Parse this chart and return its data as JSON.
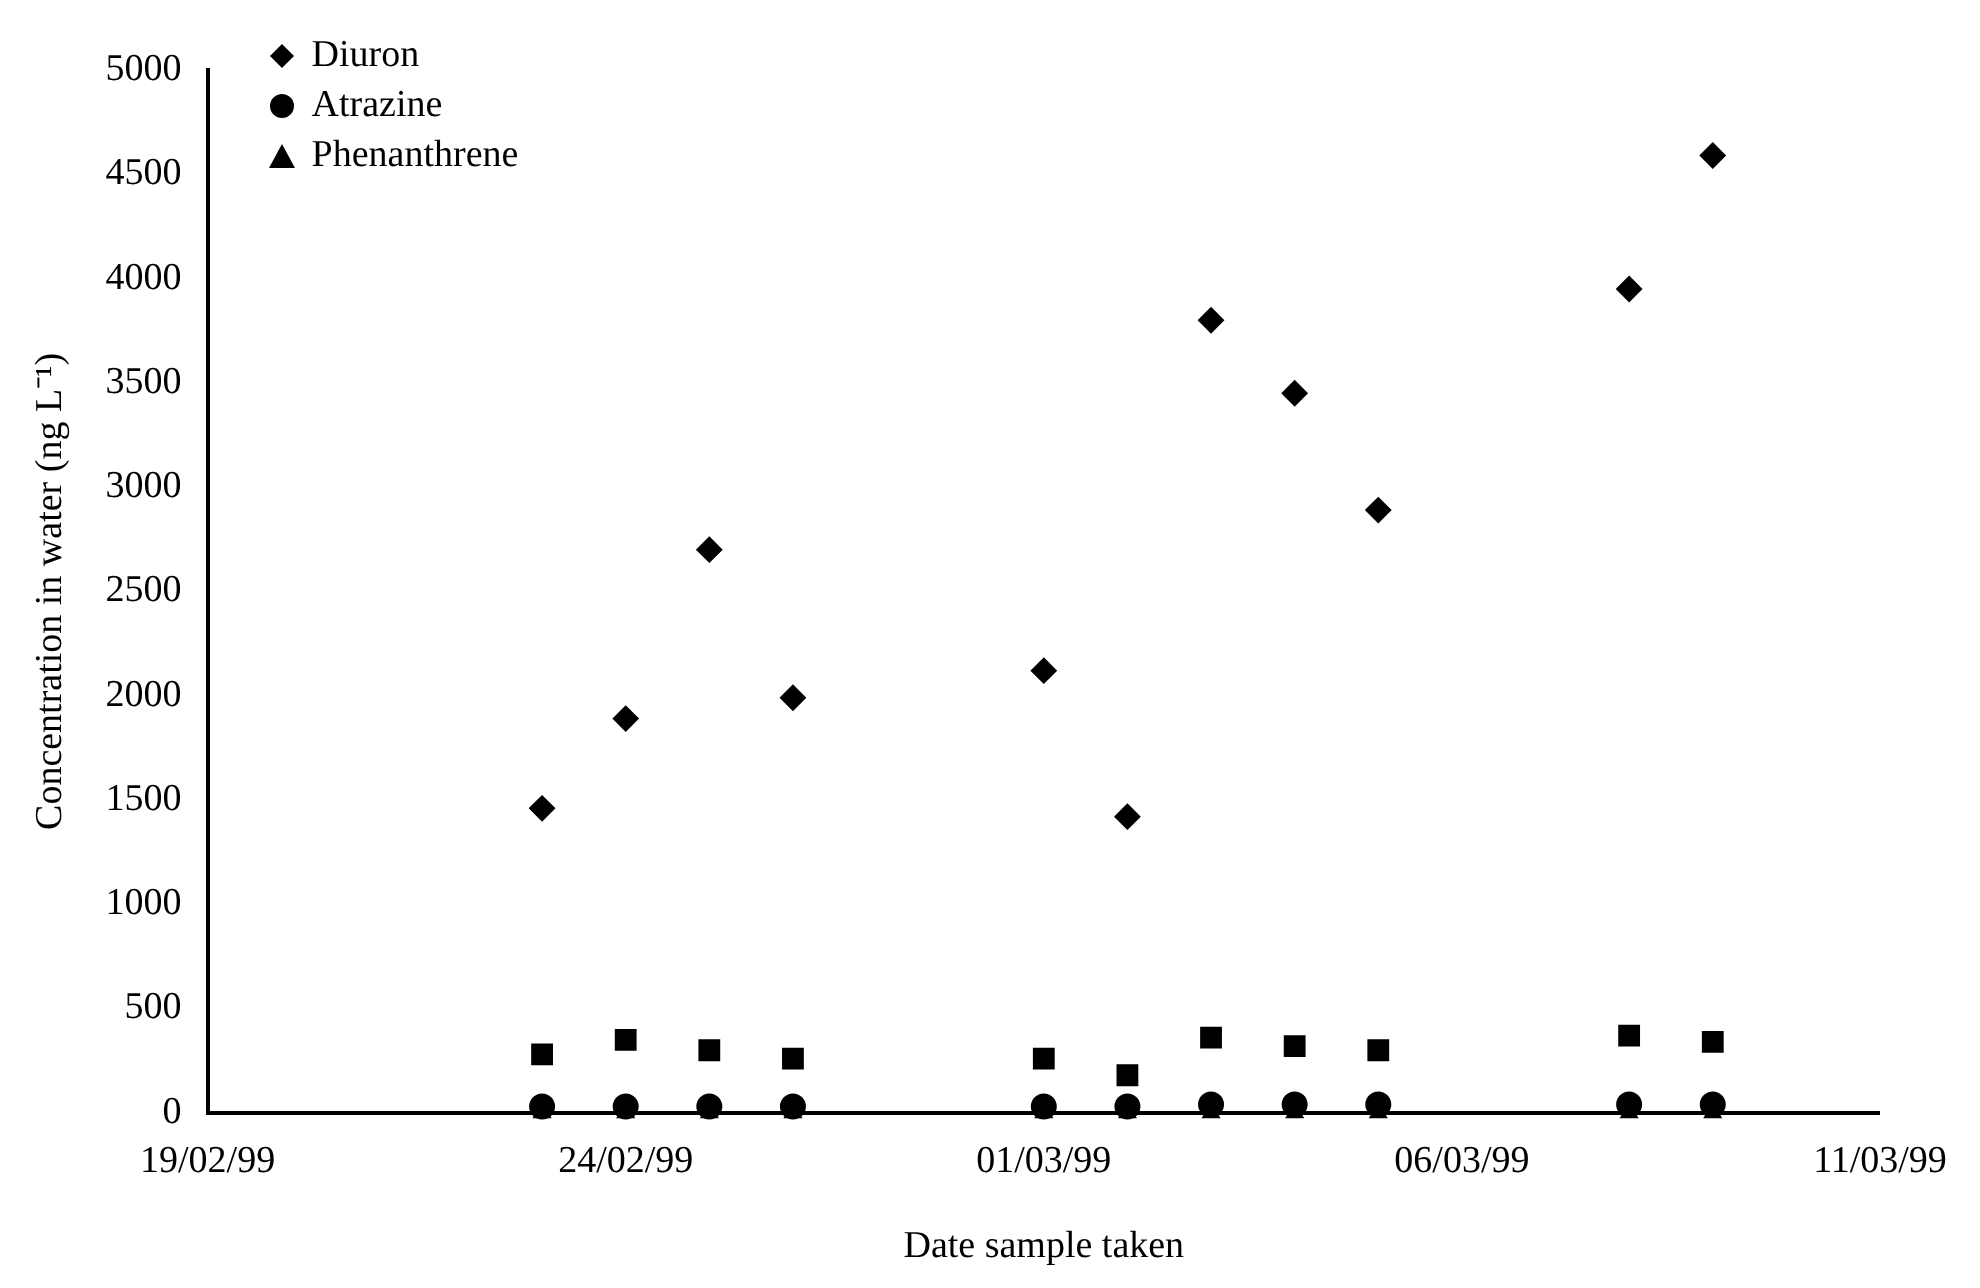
{
  "chart_data": {
    "type": "scatter",
    "xlabel": "Date sample taken",
    "ylabel": "Concentration in water (ng L⁻¹)",
    "x": [
      "1999-02-23",
      "1999-02-24",
      "1999-02-25",
      "1999-02-26",
      "1999-03-01",
      "1999-03-02",
      "1999-03-03",
      "1999-03-04",
      "1999-03-05",
      "1999-03-08",
      "1999-03-09"
    ],
    "series": [
      {
        "name": "Diuron",
        "color": "#000000",
        "marker": "diamond",
        "values": [
          1460,
          1890,
          2700,
          1990,
          2120,
          1420,
          3800,
          3450,
          2890,
          3950,
          4590
        ]
      },
      {
        "color": "#000000",
        "marker": "square",
        "values": [
          280,
          350,
          300,
          260,
          260,
          180,
          360,
          320,
          300,
          370,
          340
        ]
      },
      {
        "name": "Atrazine",
        "color": "#000000",
        "marker": "circle",
        "values": [
          30,
          30,
          30,
          30,
          30,
          30,
          40,
          40,
          40,
          40,
          40
        ]
      },
      {
        "name": "Phenanthrene",
        "color": "#000000",
        "marker": "triangle",
        "values": [
          0,
          0,
          0,
          0,
          0,
          0,
          0,
          0,
          0,
          0,
          0
        ]
      }
    ],
    "xlim": [
      "1999-02-19",
      "1999-03-11"
    ],
    "xticks": [
      {
        "value": "1999-02-19",
        "label": "19/02/99"
      },
      {
        "value": "1999-02-24",
        "label": "24/02/99"
      },
      {
        "value": "1999-03-01",
        "label": "01/03/99"
      },
      {
        "value": "1999-03-06",
        "label": "06/03/99"
      },
      {
        "value": "1999-03-11",
        "label": "11/03/99"
      }
    ],
    "ylim": [
      0,
      5000
    ],
    "yticks": [
      0,
      500,
      1000,
      1500,
      2000,
      2500,
      3000,
      3500,
      4000,
      4500,
      5000
    ],
    "grid": false,
    "legend": "top left"
  }
}
